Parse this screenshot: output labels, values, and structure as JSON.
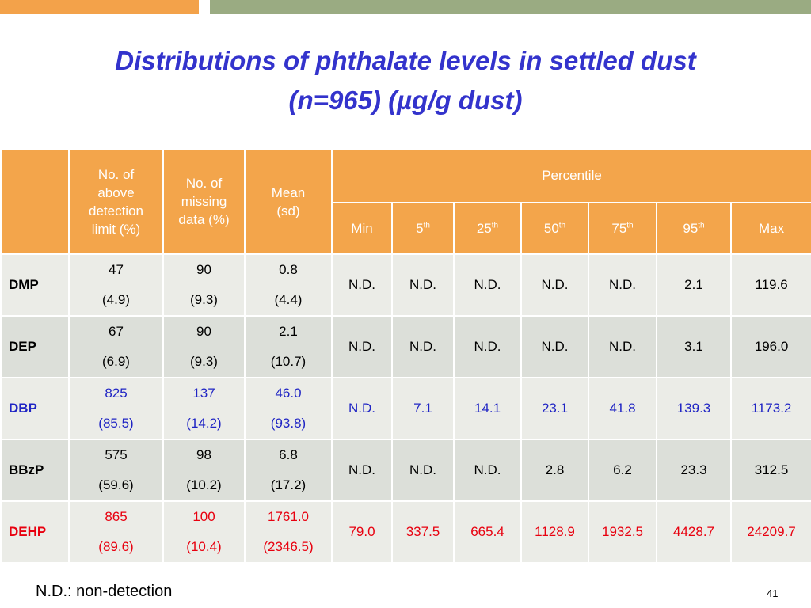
{
  "title": [
    "Distributions of phthalate levels in settled dust",
    "(n=965) (µg/g dust)"
  ],
  "table": {
    "header": {
      "detected": [
        "No. of",
        "above",
        "detection",
        "limit (%)"
      ],
      "missing": [
        "No. of",
        "missing",
        "data (%)"
      ],
      "mean": [
        "Mean",
        "(sd)"
      ],
      "group": "Percentile",
      "percentiles": [
        {
          "text": "Min"
        },
        {
          "text": "5",
          "sup": "th"
        },
        {
          "text": "25",
          "sup": "th"
        },
        {
          "text": "50",
          "sup": "th"
        },
        {
          "text": "75",
          "sup": "th"
        },
        {
          "text": "95",
          "sup": "th"
        },
        {
          "text": "Max"
        }
      ]
    },
    "rows": [
      {
        "name": "DMP",
        "color": "#000000",
        "detected": [
          "47",
          "(4.9)"
        ],
        "missing": [
          "90",
          "(9.3)"
        ],
        "mean": [
          "0.8",
          "(4.4)"
        ],
        "percentiles": [
          "N.D.",
          "N.D.",
          "N.D.",
          "N.D.",
          "N.D.",
          "2.1",
          "119.6"
        ]
      },
      {
        "name": "DEP",
        "color": "#000000",
        "detected": [
          "67",
          "(6.9)"
        ],
        "missing": [
          "90",
          "(9.3)"
        ],
        "mean": [
          "2.1",
          "(10.7)"
        ],
        "percentiles": [
          "N.D.",
          "N.D.",
          "N.D.",
          "N.D.",
          "N.D.",
          "3.1",
          "196.0"
        ]
      },
      {
        "name": "DBP",
        "color": "#1f24c4",
        "detected": [
          "825",
          "(85.5)"
        ],
        "missing": [
          "137",
          "(14.2)"
        ],
        "mean": [
          "46.0",
          "(93.8)"
        ],
        "percentiles": [
          "N.D.",
          "7.1",
          "14.1",
          "23.1",
          "41.8",
          "139.3",
          "1173.2"
        ]
      },
      {
        "name": "BBzP",
        "color": "#000000",
        "detected": [
          "575",
          "(59.6)"
        ],
        "missing": [
          "98",
          "(10.2)"
        ],
        "mean": [
          "6.8",
          "(17.2)"
        ],
        "percentiles": [
          "N.D.",
          "N.D.",
          "N.D.",
          "2.8",
          "6.2",
          "23.3",
          "312.5"
        ]
      },
      {
        "name": "DEHP",
        "color": "#e8000f",
        "detected": [
          "865",
          "(89.6)"
        ],
        "missing": [
          "100",
          "(10.4)"
        ],
        "mean": [
          "1761.0",
          "(2346.5)"
        ],
        "percentiles": [
          "79.0",
          "337.5",
          "665.4",
          "1128.9",
          "1932.5",
          "4428.7",
          "24209.7"
        ]
      }
    ]
  },
  "footnote": "N.D.: non-detection",
  "page_number": "41"
}
